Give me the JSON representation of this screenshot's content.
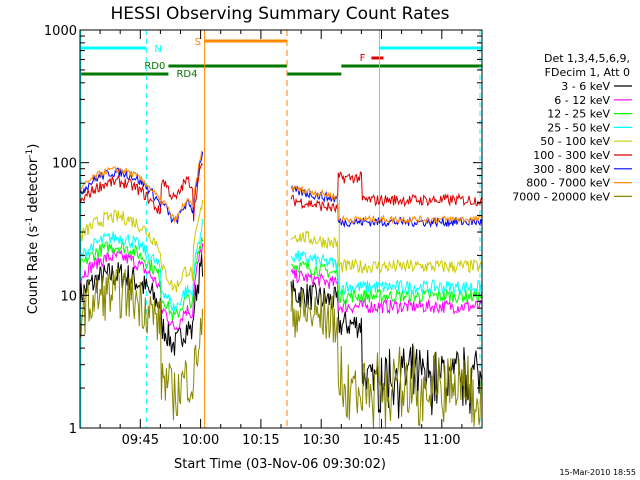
{
  "chart_data": {
    "type": "line",
    "title": "HESSI Observing Summary Count Rates",
    "xlabel": "Start Time (03-Nov-06 09:30:02)",
    "ylabel_main": "Count Rate (s",
    "ylabel_sup1": "-1",
    "ylabel_mid": " detector",
    "ylabel_sup2": "-1",
    "ylabel_end": ")",
    "y_scale": "log",
    "ylim": [
      1,
      1000
    ],
    "x_ticks": [
      "09:45",
      "10:00",
      "10:15",
      "10:30",
      "10:45",
      "11:00"
    ],
    "x_tick_minutes": [
      15,
      30,
      45,
      60,
      75,
      90
    ],
    "x_range_minutes": [
      0,
      100
    ],
    "y_ticks": [
      "1",
      "10",
      "100",
      "1000"
    ],
    "y_tick_values": [
      1,
      10,
      100,
      1000
    ],
    "legend_header_1": "Det 1,3,4,5,6,9,",
    "legend_header_2": "FDecim 1, Att 0",
    "legend_placement": "right",
    "series": [
      {
        "name": "3 - 6 keV",
        "color": "#000000"
      },
      {
        "name": "6 - 12 keV",
        "color": "#ff00ff"
      },
      {
        "name": "12 - 25 keV",
        "color": "#00ff00"
      },
      {
        "name": "25 - 50 keV",
        "color": "#00ffff"
      },
      {
        "name": "50 - 100 keV",
        "color": "#cccc00"
      },
      {
        "name": "100 - 300 keV",
        "color": "#dd0000"
      },
      {
        "name": "300 - 800 keV",
        "color": "#0000ff"
      },
      {
        "name": "800 - 7000 keV",
        "color": "#ff8800"
      },
      {
        "name": "7000 - 20000 keV",
        "color": "#888800"
      }
    ],
    "annotations": {
      "N": "N",
      "RD0": "RD0",
      "RD4": "RD4",
      "S": "S",
      "F": "F"
    },
    "timestamp": "15-Mar-2010 18:55"
  }
}
